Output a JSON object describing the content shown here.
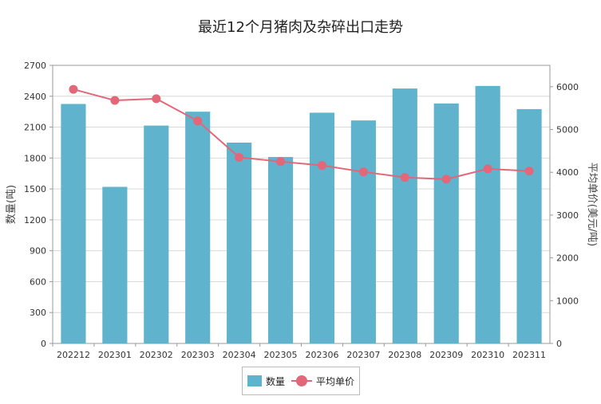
{
  "chart_data": {
    "type": "bar",
    "title": "最近12个月猪肉及杂碎出口走势",
    "categories": [
      "202212",
      "202301",
      "202302",
      "202303",
      "202304",
      "202305",
      "202306",
      "202307",
      "202308",
      "202309",
      "202310",
      "202311"
    ],
    "series": [
      {
        "name": "数量",
        "type": "bar",
        "axis": "left",
        "values": [
          2325,
          1520,
          2115,
          2250,
          1950,
          1810,
          2240,
          2165,
          2475,
          2330,
          2500,
          2275
        ]
      },
      {
        "name": "平均单价",
        "type": "line",
        "axis": "right",
        "values": [
          5940,
          5680,
          5720,
          5200,
          4350,
          4250,
          4160,
          4010,
          3880,
          3840,
          4080,
          4030
        ]
      }
    ],
    "ylabel": "数量(吨)",
    "y2label": "平均单价(美元/吨)",
    "ylim": [
      0,
      2700
    ],
    "y2lim": [
      0,
      6500
    ],
    "yticks": [
      0,
      300,
      600,
      900,
      1200,
      1500,
      1800,
      2100,
      2400,
      2700
    ],
    "y2ticks": [
      0,
      1000,
      2000,
      3000,
      4000,
      5000,
      6000
    ],
    "grid": true,
    "legend": "bottom-center",
    "colors": {
      "bar": "#5fb3cc",
      "line": "#e26778",
      "grid": "#d9d9d9",
      "axis": "#999999"
    }
  }
}
